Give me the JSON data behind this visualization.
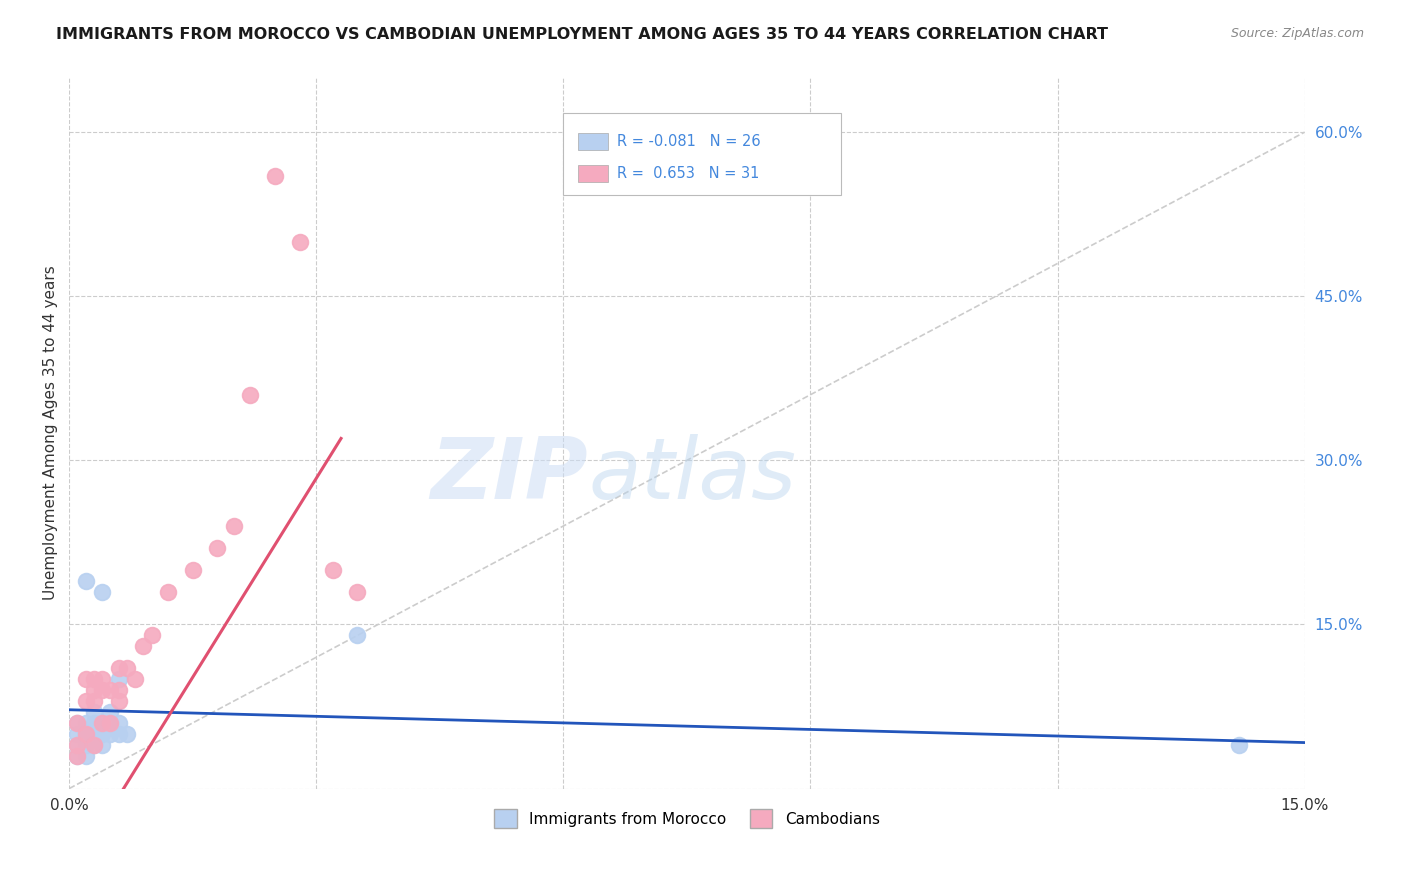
{
  "title": "IMMIGRANTS FROM MOROCCO VS CAMBODIAN UNEMPLOYMENT AMONG AGES 35 TO 44 YEARS CORRELATION CHART",
  "source": "Source: ZipAtlas.com",
  "ylabel": "Unemployment Among Ages 35 to 44 years",
  "ytick_vals": [
    0.0,
    0.15,
    0.3,
    0.45,
    0.6
  ],
  "xtick_vals": [
    0.0,
    0.03,
    0.06,
    0.09,
    0.12,
    0.15
  ],
  "morocco_color": "#b8d0f0",
  "cambodian_color": "#f5aabf",
  "morocco_line_color": "#2255bb",
  "cambodian_line_color": "#e05070",
  "diagonal_color": "#cccccc",
  "watermark_zip": "ZIP",
  "watermark_atlas": "atlas",
  "background_color": "#ffffff",
  "morocco_x": [
    0.001,
    0.001,
    0.001,
    0.001,
    0.002,
    0.002,
    0.002,
    0.002,
    0.002,
    0.003,
    0.003,
    0.003,
    0.003,
    0.004,
    0.004,
    0.004,
    0.004,
    0.005,
    0.005,
    0.005,
    0.006,
    0.006,
    0.006,
    0.007,
    0.035,
    0.142
  ],
  "morocco_y": [
    0.03,
    0.04,
    0.05,
    0.06,
    0.03,
    0.04,
    0.05,
    0.06,
    0.19,
    0.04,
    0.05,
    0.06,
    0.07,
    0.04,
    0.05,
    0.06,
    0.18,
    0.05,
    0.06,
    0.07,
    0.05,
    0.06,
    0.1,
    0.05,
    0.14,
    0.04
  ],
  "cambodian_x": [
    0.001,
    0.001,
    0.001,
    0.002,
    0.002,
    0.002,
    0.003,
    0.003,
    0.003,
    0.003,
    0.004,
    0.004,
    0.004,
    0.005,
    0.005,
    0.006,
    0.006,
    0.006,
    0.007,
    0.008,
    0.009,
    0.01,
    0.012,
    0.015,
    0.018,
    0.02,
    0.022,
    0.025,
    0.028,
    0.032,
    0.035
  ],
  "cambodian_y": [
    0.03,
    0.04,
    0.06,
    0.05,
    0.08,
    0.1,
    0.04,
    0.08,
    0.09,
    0.1,
    0.06,
    0.09,
    0.1,
    0.06,
    0.09,
    0.08,
    0.09,
    0.11,
    0.11,
    0.1,
    0.13,
    0.14,
    0.18,
    0.2,
    0.22,
    0.24,
    0.36,
    0.56,
    0.5,
    0.2,
    0.18
  ],
  "xlim": [
    0.0,
    0.15
  ],
  "ylim": [
    0.0,
    0.65
  ]
}
